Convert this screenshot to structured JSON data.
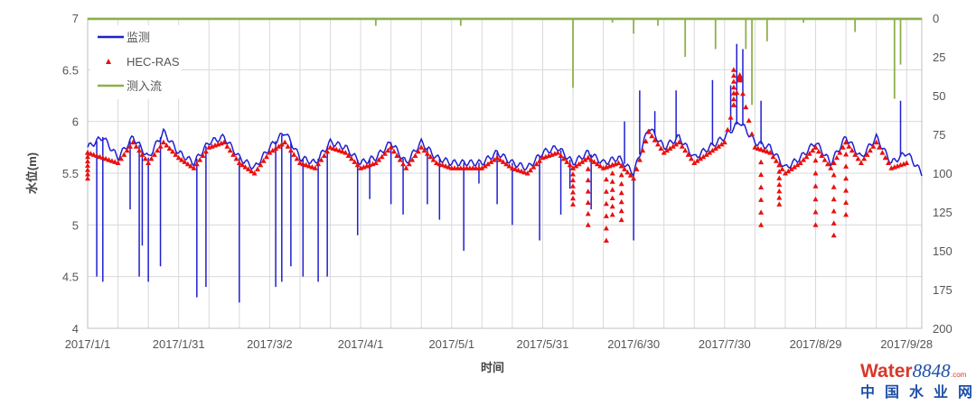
{
  "chart_data": {
    "type": "line",
    "xlabel": "时间",
    "ylabel": "水位(m)",
    "ylim": [
      4,
      7
    ],
    "y2lim": [
      0,
      200
    ],
    "y2_inverted": true,
    "xlim": [
      "2017/1/1",
      "2017/10/3"
    ],
    "yticks": [
      "4",
      "4.5",
      "5",
      "5.5",
      "6",
      "6.5",
      "7"
    ],
    "y2ticks": [
      "0",
      "25",
      "50",
      "75",
      "100",
      "125",
      "150",
      "175",
      "200"
    ],
    "xticks": [
      "2017/1/1",
      "2017/1/31",
      "2017/3/2",
      "2017/4/1",
      "2017/5/1",
      "2017/5/31",
      "2017/6/30",
      "2017/7/30",
      "2017/8/29",
      "2017/9/28"
    ],
    "grid": true,
    "legend_placement": "top-left",
    "series": [
      {
        "name": "监测",
        "color": "#1f1fd0",
        "style": "line",
        "axis": "left",
        "x": [
          "2017/1/1",
          "2017/1/6",
          "2017/1/11",
          "2017/1/16",
          "2017/1/21",
          "2017/1/26",
          "2017/1/31",
          "2017/2/5",
          "2017/2/10",
          "2017/2/15",
          "2017/2/20",
          "2017/2/25",
          "2017/3/2",
          "2017/3/7",
          "2017/3/12",
          "2017/3/17",
          "2017/3/22",
          "2017/3/27",
          "2017/4/1",
          "2017/4/6",
          "2017/4/11",
          "2017/4/16",
          "2017/4/21",
          "2017/4/26",
          "2017/5/1",
          "2017/5/6",
          "2017/5/11",
          "2017/5/16",
          "2017/5/21",
          "2017/5/26",
          "2017/5/31",
          "2017/6/5",
          "2017/6/10",
          "2017/6/15",
          "2017/6/20",
          "2017/6/25",
          "2017/6/30",
          "2017/7/5",
          "2017/7/10",
          "2017/7/15",
          "2017/7/20",
          "2017/7/25",
          "2017/7/30",
          "2017/8/4",
          "2017/8/9",
          "2017/8/14",
          "2017/8/19",
          "2017/8/24",
          "2017/8/29",
          "2017/9/3",
          "2017/9/8",
          "2017/9/13",
          "2017/9/18",
          "2017/9/23",
          "2017/9/28",
          "2017/10/3"
        ],
        "values": [
          5.75,
          5.85,
          5.65,
          5.85,
          5.65,
          5.9,
          5.7,
          5.6,
          5.8,
          5.85,
          5.65,
          5.55,
          5.75,
          5.9,
          5.65,
          5.6,
          5.8,
          5.75,
          5.6,
          5.65,
          5.8,
          5.6,
          5.8,
          5.65,
          5.6,
          5.6,
          5.6,
          5.7,
          5.6,
          5.55,
          5.7,
          5.75,
          5.6,
          5.7,
          5.6,
          5.65,
          5.5,
          5.95,
          5.75,
          5.85,
          5.65,
          5.75,
          5.85,
          6.0,
          5.8,
          5.75,
          5.55,
          5.65,
          5.8,
          5.6,
          5.85,
          5.65,
          5.85,
          5.6,
          5.7,
          5.5
        ],
        "spikes": [
          [
            "2017/1/4",
            4.5
          ],
          [
            "2017/1/6",
            4.45
          ],
          [
            "2017/1/15",
            5.15
          ],
          [
            "2017/1/18",
            4.5
          ],
          [
            "2017/1/19",
            4.8
          ],
          [
            "2017/1/21",
            4.45
          ],
          [
            "2017/1/25",
            4.6
          ],
          [
            "2017/2/6",
            4.3
          ],
          [
            "2017/2/9",
            4.4
          ],
          [
            "2017/2/20",
            4.25
          ],
          [
            "2017/3/4",
            4.4
          ],
          [
            "2017/3/6",
            4.45
          ],
          [
            "2017/3/9",
            4.6
          ],
          [
            "2017/3/13",
            4.5
          ],
          [
            "2017/3/18",
            4.45
          ],
          [
            "2017/3/21",
            4.5
          ],
          [
            "2017/3/31",
            4.9
          ],
          [
            "2017/4/4",
            5.25
          ],
          [
            "2017/4/11",
            5.2
          ],
          [
            "2017/4/15",
            5.1
          ],
          [
            "2017/4/23",
            5.2
          ],
          [
            "2017/4/27",
            5.05
          ],
          [
            "2017/5/5",
            4.75
          ],
          [
            "2017/5/10",
            5.4
          ],
          [
            "2017/5/16",
            5.2
          ],
          [
            "2017/5/21",
            5.0
          ],
          [
            "2017/5/30",
            4.85
          ],
          [
            "2017/6/6",
            5.1
          ],
          [
            "2017/6/9",
            5.35
          ],
          [
            "2017/6/16",
            5.15
          ],
          [
            "2017/6/27",
            6.0
          ],
          [
            "2017/6/30",
            4.85
          ],
          [
            "2017/7/2",
            6.3
          ],
          [
            "2017/7/7",
            6.1
          ],
          [
            "2017/7/14",
            6.3
          ],
          [
            "2017/7/26",
            6.4
          ],
          [
            "2017/8/1",
            6.35
          ],
          [
            "2017/8/3",
            6.75
          ],
          [
            "2017/8/5",
            6.7
          ],
          [
            "2017/8/11",
            6.2
          ],
          [
            "2017/9/26",
            6.2
          ]
        ]
      },
      {
        "name": "HEC-RAS",
        "color": "#e81010",
        "style": "triangle-markers",
        "axis": "left",
        "x": [
          "2017/1/1",
          "2017/1/6",
          "2017/1/11",
          "2017/1/16",
          "2017/1/21",
          "2017/1/26",
          "2017/1/31",
          "2017/2/5",
          "2017/2/10",
          "2017/2/15",
          "2017/2/20",
          "2017/2/25",
          "2017/3/2",
          "2017/3/7",
          "2017/3/12",
          "2017/3/17",
          "2017/3/22",
          "2017/3/27",
          "2017/4/1",
          "2017/4/6",
          "2017/4/11",
          "2017/4/16",
          "2017/4/21",
          "2017/4/26",
          "2017/5/1",
          "2017/5/6",
          "2017/5/11",
          "2017/5/16",
          "2017/5/21",
          "2017/5/26",
          "2017/5/31",
          "2017/6/5",
          "2017/6/10",
          "2017/6/15",
          "2017/6/20",
          "2017/6/25",
          "2017/6/30",
          "2017/7/5",
          "2017/7/10",
          "2017/7/15",
          "2017/7/20",
          "2017/7/25",
          "2017/7/30",
          "2017/8/4",
          "2017/8/9",
          "2017/8/14",
          "2017/8/19",
          "2017/8/24",
          "2017/8/29",
          "2017/9/3",
          "2017/9/8",
          "2017/9/13",
          "2017/9/18",
          "2017/9/23",
          "2017/9/28"
        ],
        "values": [
          5.7,
          5.65,
          5.6,
          5.8,
          5.6,
          5.8,
          5.65,
          5.55,
          5.75,
          5.8,
          5.6,
          5.5,
          5.7,
          5.8,
          5.6,
          5.55,
          5.75,
          5.7,
          5.55,
          5.6,
          5.75,
          5.55,
          5.75,
          5.6,
          5.55,
          5.55,
          5.55,
          5.65,
          5.55,
          5.5,
          5.65,
          5.7,
          5.55,
          5.65,
          5.55,
          5.6,
          5.45,
          5.9,
          5.7,
          5.8,
          5.6,
          5.7,
          5.8,
          6.4,
          5.75,
          5.7,
          5.5,
          5.6,
          5.75,
          5.55,
          5.8,
          5.6,
          5.8,
          5.55,
          5.6
        ],
        "spikes": [
          [
            "2017/1/1",
            5.45
          ],
          [
            "2017/6/10",
            5.2
          ],
          [
            "2017/6/15",
            5.0
          ],
          [
            "2017/6/21",
            4.85
          ],
          [
            "2017/6/23",
            5.1
          ],
          [
            "2017/6/26",
            5.05
          ],
          [
            "2017/8/2",
            6.5
          ],
          [
            "2017/8/4",
            6.45
          ],
          [
            "2017/8/11",
            5.0
          ],
          [
            "2017/8/17",
            5.2
          ],
          [
            "2017/8/29",
            5.0
          ],
          [
            "2017/9/4",
            4.9
          ],
          [
            "2017/9/8",
            5.1
          ]
        ]
      },
      {
        "name": "测入流",
        "color": "#8db04a",
        "style": "line",
        "axis": "right",
        "baseline": 0,
        "spikes": [
          [
            "2017/4/6",
            5
          ],
          [
            "2017/5/4",
            5
          ],
          [
            "2017/6/10",
            45
          ],
          [
            "2017/6/23",
            3
          ],
          [
            "2017/6/30",
            10
          ],
          [
            "2017/7/8",
            5
          ],
          [
            "2017/7/17",
            25
          ],
          [
            "2017/7/27",
            20
          ],
          [
            "2017/8/6",
            20
          ],
          [
            "2017/8/8",
            56
          ],
          [
            "2017/8/13",
            15
          ],
          [
            "2017/8/25",
            3
          ],
          [
            "2017/9/11",
            9
          ],
          [
            "2017/9/24",
            52
          ],
          [
            "2017/9/26",
            30
          ]
        ]
      }
    ]
  },
  "watermark": {
    "brand": "Water8848",
    "suffix": ".com",
    "cn": "中国水业网"
  }
}
